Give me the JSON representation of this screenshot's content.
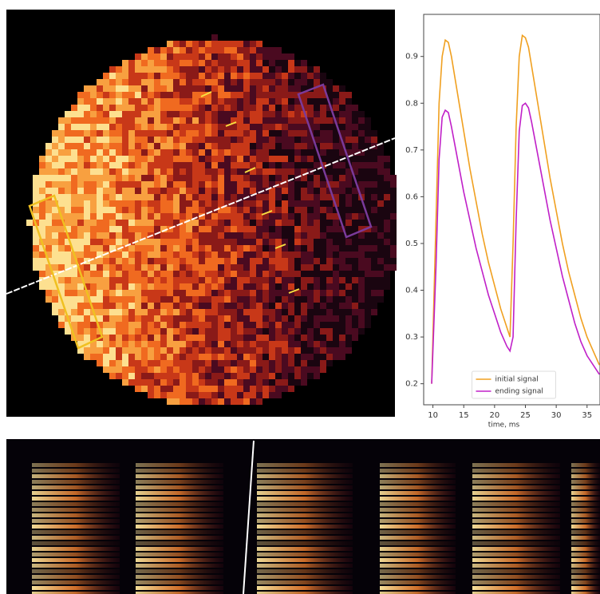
{
  "chart_data": {
    "type": "line",
    "x_label": "time, ms",
    "x": [
      9.8,
      10.5,
      11,
      11.5,
      12,
      12.5,
      13,
      14,
      15,
      16,
      17,
      18,
      19,
      20,
      21,
      22,
      22.5,
      23,
      23.5,
      24,
      24.5,
      25,
      25.5,
      26,
      27,
      28,
      29,
      30,
      31,
      32,
      33,
      34,
      35,
      36,
      37
    ],
    "series": [
      {
        "name": "initial signal",
        "color": "#f0a020",
        "values": [
          0.2,
          0.55,
          0.8,
          0.9,
          0.935,
          0.93,
          0.9,
          0.82,
          0.74,
          0.66,
          0.59,
          0.52,
          0.46,
          0.41,
          0.36,
          0.32,
          0.3,
          0.5,
          0.75,
          0.9,
          0.945,
          0.94,
          0.92,
          0.88,
          0.8,
          0.72,
          0.64,
          0.57,
          0.5,
          0.44,
          0.39,
          0.34,
          0.3,
          0.27,
          0.24
        ]
      },
      {
        "name": "ending signal",
        "color": "#c020c8",
        "values": [
          0.2,
          0.45,
          0.68,
          0.77,
          0.785,
          0.78,
          0.75,
          0.68,
          0.61,
          0.55,
          0.49,
          0.44,
          0.39,
          0.35,
          0.31,
          0.28,
          0.27,
          0.3,
          0.55,
          0.74,
          0.795,
          0.8,
          0.79,
          0.76,
          0.69,
          0.62,
          0.55,
          0.49,
          0.43,
          0.38,
          0.33,
          0.29,
          0.26,
          0.24,
          0.22
        ]
      }
    ],
    "xlim": [
      8.5,
      37.1
    ],
    "ylim": [
      0.155,
      0.99
    ],
    "xticks": [
      10,
      15,
      20,
      25,
      30,
      35
    ],
    "yticks": [
      0.2,
      0.3,
      0.4,
      0.5,
      0.6,
      0.7,
      0.8,
      0.9
    ],
    "legend": "lower center"
  }
}
